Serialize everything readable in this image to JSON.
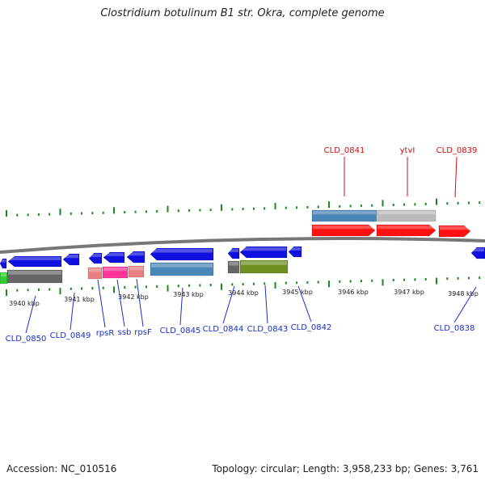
{
  "title": "Clostridium botulinum B1 str. Okra, complete genome",
  "footer": {
    "accession": "Accession: NC_010516",
    "summary": "Topology: circular; Length: 3,958,233 bp; Genes: 3,761"
  },
  "colors": {
    "backbone": "#777777",
    "tick": "#1a8a1a",
    "label_blue": "#1a2fc8",
    "label_red": "#cc1010"
  },
  "scale_labels": [
    "3940 kbp",
    "3941 kbp",
    "3942 kbp",
    "3943 kbp",
    "3944 kbp",
    "3945 kbp",
    "3946 kbp",
    "3947 kbp",
    "3948 kbp"
  ],
  "gene_labels_upper": [
    "CLD_0841",
    "ytvI",
    "CLD_0839"
  ],
  "gene_labels_lower": [
    "CLD_0850",
    "CLD_0849",
    "rpsR",
    "ssb",
    "rpsF",
    "CLD_0845",
    "CLD_0844",
    "CLD_0843",
    "CLD_0842",
    "CLD_0838"
  ],
  "feature_colors": [
    "#1010e0",
    "#ff1010",
    "#4a86b8",
    "#bbbbbb",
    "#666666",
    "#6e8f22",
    "#ff3399",
    "#e88080",
    "#33cc33"
  ]
}
